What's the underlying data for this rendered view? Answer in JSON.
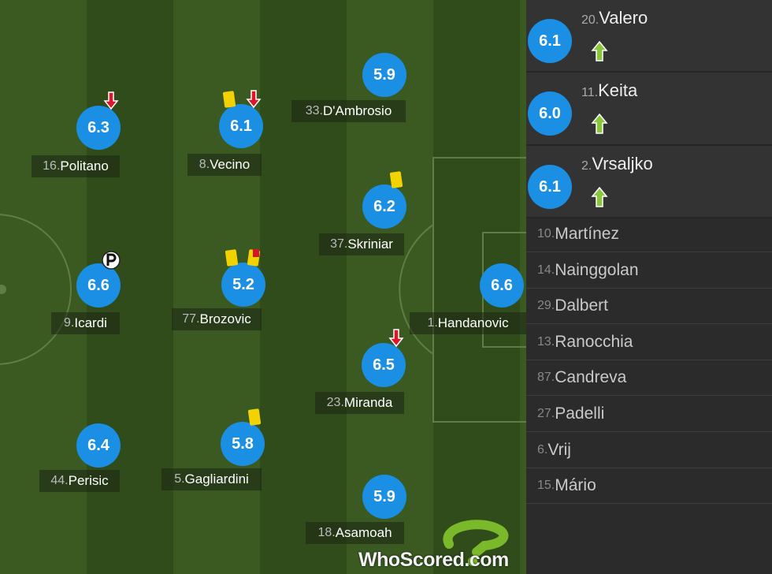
{
  "pitch": {
    "players": [
      {
        "number": "16.",
        "name": "Politano",
        "rating": "6.3",
        "events": [
          "sub-off"
        ]
      },
      {
        "number": "8.",
        "name": "Vecino",
        "rating": "6.1",
        "events": [
          "yellow-card",
          "sub-off"
        ]
      },
      {
        "number": "33.",
        "name": "D'Ambrosio",
        "rating": "5.9",
        "events": []
      },
      {
        "number": "37.",
        "name": "Skriniar",
        "rating": "6.2",
        "events": [
          "yellow-card"
        ]
      },
      {
        "number": "9.",
        "name": "Icardi",
        "rating": "6.6",
        "events": [
          "penalty"
        ]
      },
      {
        "number": "77.",
        "name": "Brozovic",
        "rating": "5.2",
        "events": [
          "yellow-card",
          "second-yellow"
        ]
      },
      {
        "number": "1.",
        "name": "Handanovic",
        "rating": "6.6",
        "events": []
      },
      {
        "number": "23.",
        "name": "Miranda",
        "rating": "6.5",
        "events": [
          "sub-off"
        ]
      },
      {
        "number": "44.",
        "name": "Perisic",
        "rating": "6.4",
        "events": []
      },
      {
        "number": "5.",
        "name": "Gagliardini",
        "rating": "5.8",
        "events": [
          "yellow-card"
        ]
      },
      {
        "number": "18.",
        "name": "Asamoah",
        "rating": "5.9",
        "events": []
      }
    ]
  },
  "bench": {
    "substitutes": [
      {
        "number": "20.",
        "name": "Valero",
        "rating": "6.1"
      },
      {
        "number": "11.",
        "name": "Keita",
        "rating": "6.0"
      },
      {
        "number": "2.",
        "name": "Vrsaljko",
        "rating": "6.1"
      }
    ],
    "unused": [
      {
        "number": "10.",
        "name": "Martínez"
      },
      {
        "number": "14.",
        "name": "Nainggolan"
      },
      {
        "number": "29.",
        "name": "Dalbert"
      },
      {
        "number": "13.",
        "name": "Ranocchia"
      },
      {
        "number": "87.",
        "name": "Candreva"
      },
      {
        "number": "27.",
        "name": "Padelli"
      },
      {
        "number": "6.",
        "name": "Vrij"
      },
      {
        "number": "15.",
        "name": "Mário"
      }
    ]
  },
  "watermark": "WhoScored.com"
}
